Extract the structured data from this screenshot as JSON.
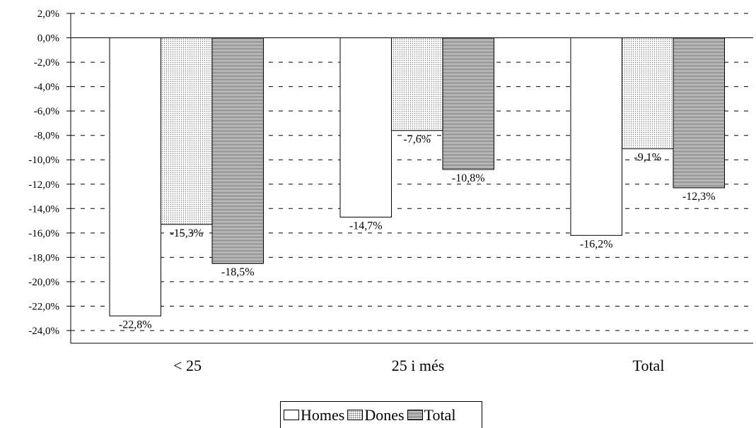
{
  "chart_data": {
    "type": "bar",
    "categories": [
      "< 25",
      "25 i més",
      "Total"
    ],
    "series": [
      {
        "name": "Homes",
        "values": [
          -22.8,
          -14.7,
          -16.2
        ],
        "labels": [
          "-22,8%",
          "-14,7%",
          "-16,2%"
        ]
      },
      {
        "name": "Dones",
        "values": [
          -15.3,
          -7.6,
          -9.1
        ],
        "labels": [
          "-15,3%",
          "-7,6%",
          "-9,1%"
        ]
      },
      {
        "name": "Total",
        "values": [
          -18.5,
          -10.8,
          -12.3
        ],
        "labels": [
          "-18,5%",
          "-10,8%",
          "-12,3%"
        ]
      }
    ],
    "ylim": [
      -24,
      2
    ],
    "yticks": [
      2,
      0,
      -2,
      -4,
      -6,
      -8,
      -10,
      -12,
      -14,
      -16,
      -18,
      -20,
      -22,
      -24
    ],
    "ytick_labels": [
      "2,0%",
      "0,0%",
      "-2,0%",
      "-4,0%",
      "-6,0%",
      "-8,0%",
      "-10,0%",
      "-12,0%",
      "-14,0%",
      "-16,0%",
      "-18,0%",
      "-20,0%",
      "-22,0%",
      "-24,0%"
    ],
    "grid": true,
    "legend_position": "bottom"
  },
  "legend": {
    "homes": "Homes",
    "dones": "Dones",
    "total": "Total"
  }
}
